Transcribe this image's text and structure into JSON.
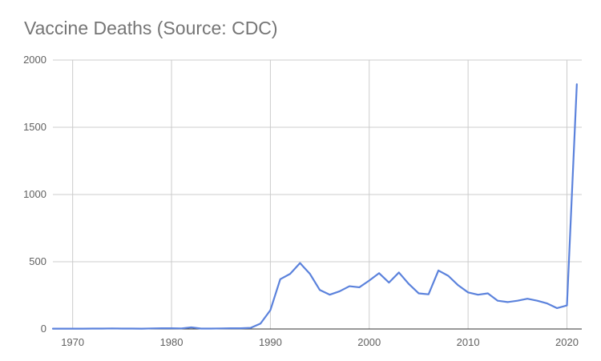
{
  "colors": {
    "line": "#5b82dc",
    "grid": "#cccccc",
    "axis": "#333333",
    "title": "#757575",
    "tick": "#616161"
  },
  "chart_data": {
    "type": "line",
    "title": "Vaccine Deaths (Source: CDC)",
    "xlabel": "",
    "ylabel": "",
    "xlim": [
      1968,
      2021.5
    ],
    "ylim": [
      0,
      2000
    ],
    "x_ticks": [
      1970,
      1980,
      1990,
      2000,
      2010,
      2020
    ],
    "y_ticks": [
      0,
      500,
      1000,
      1500,
      2000
    ],
    "grid": true,
    "legend": "none",
    "series": [
      {
        "x": [
          1968,
          1969,
          1970,
          1971,
          1972,
          1973,
          1974,
          1975,
          1976,
          1977,
          1978,
          1979,
          1980,
          1981,
          1982,
          1983,
          1984,
          1985,
          1986,
          1987,
          1988,
          1989,
          1990,
          1991,
          1992,
          1993,
          1994,
          1995,
          1996,
          1997,
          1998,
          1999,
          2000,
          2001,
          2002,
          2003,
          2004,
          2005,
          2006,
          2007,
          2008,
          2009,
          2010,
          2011,
          2012,
          2013,
          2014,
          2015,
          2016,
          2017,
          2018,
          2019,
          2020,
          2021
        ],
        "values": [
          2,
          2,
          2,
          2,
          3,
          3,
          4,
          3,
          3,
          2,
          4,
          5,
          5,
          4,
          12,
          3,
          3,
          4,
          5,
          5,
          8,
          40,
          140,
          370,
          410,
          490,
          410,
          290,
          255,
          280,
          318,
          310,
          360,
          415,
          345,
          420,
          335,
          265,
          258,
          435,
          395,
          325,
          272,
          255,
          265,
          210,
          200,
          210,
          225,
          210,
          190,
          155,
          175,
          1820
        ]
      }
    ]
  }
}
